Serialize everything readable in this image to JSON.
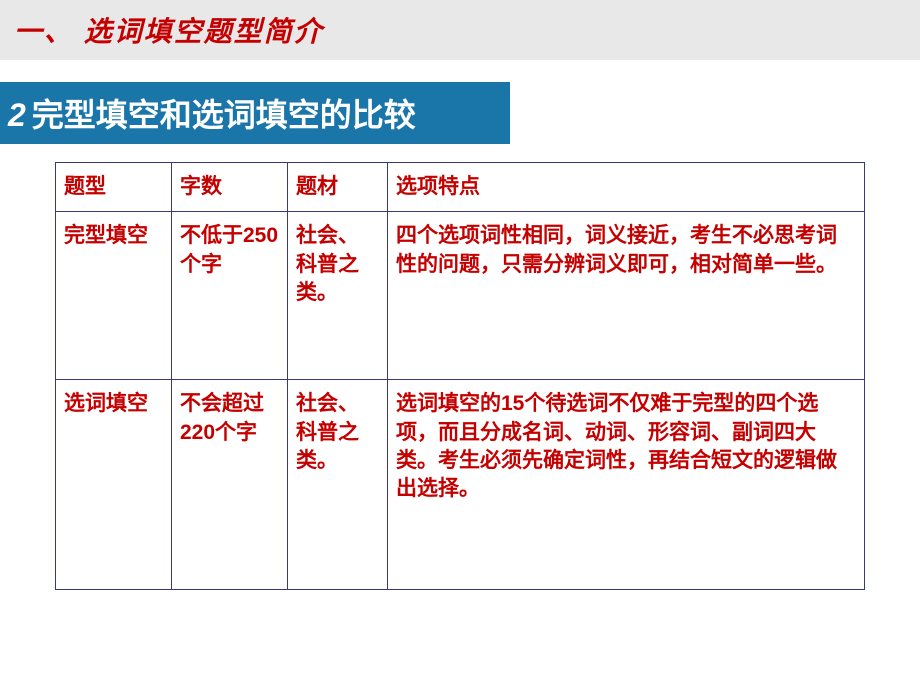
{
  "title": "一、 选词填空题型简介",
  "subtitle_num": "2",
  "subtitle_text": "完型填空和选词填空的比较",
  "table": {
    "headers": {
      "type": "题型",
      "words": "字数",
      "topic": "题材",
      "features": "选项特点"
    },
    "rows": [
      {
        "type": "完型填空",
        "words": "不低于250个字",
        "topic": "社会、科普之类。",
        "features": "四个选项词性相同，词义接近，考生不必思考词性的问题，只需分辨词义即可，相对简单一些。"
      },
      {
        "type": "选词填空",
        "words": "不会超过220个字",
        "topic": "社会、科普之类。",
        "features": "选词填空的15个待选词不仅难于完型的四个选项，而且分成名词、动词、形容词、副词四大类。考生必须先确定词性，再结合短文的逻辑做出选择。"
      }
    ]
  },
  "colors": {
    "title_bg": "#e8e8e8",
    "title_fg": "#c40000",
    "subtitle_bg": "#1a75a8",
    "subtitle_fg": "#ffffff",
    "cell_fg": "#c40000",
    "border": "#3a3a7a"
  }
}
